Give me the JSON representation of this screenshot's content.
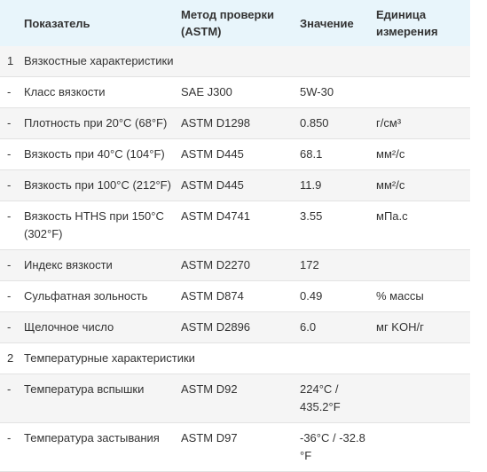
{
  "table": {
    "headers": {
      "num": "",
      "parameter": "Показатель",
      "method": "Метод проверки (ASTM)",
      "value": "Значение",
      "unit": "Единица измерения"
    },
    "rows": [
      {
        "num": "1",
        "parameter": "Вязкостные характеристики",
        "method": "",
        "value": "",
        "unit": "",
        "section": true
      },
      {
        "num": "-",
        "parameter": "Класс вязкости",
        "method": "SAE J300",
        "value": "5W-30",
        "unit": ""
      },
      {
        "num": "-",
        "parameter": "Плотность при 20°C (68°F)",
        "method": "ASTM D1298",
        "value": "0.850",
        "unit": "г/см³"
      },
      {
        "num": "-",
        "parameter": "Вязкость при 40°C (104°F)",
        "method": "ASTM D445",
        "value": "68.1",
        "unit": "мм²/с"
      },
      {
        "num": "-",
        "parameter": "Вязкость при 100°C (212°F)",
        "method": "ASTM D445",
        "value": "11.9",
        "unit": "мм²/с"
      },
      {
        "num": "-",
        "parameter": "Вязкость HTHS при 150°C (302°F)",
        "method": "ASTM D4741",
        "value": "3.55",
        "unit": "мПа.с"
      },
      {
        "num": "-",
        "parameter": "Индекс вязкости",
        "method": "ASTM D2270",
        "value": "172",
        "unit": ""
      },
      {
        "num": "-",
        "parameter": "Сульфатная зольность",
        "method": "ASTM D874",
        "value": "0.49",
        "unit": "% массы"
      },
      {
        "num": "-",
        "parameter": "Щелочное число",
        "method": "ASTM D2896",
        "value": "6.0",
        "unit": "мг KOH/г"
      },
      {
        "num": "2",
        "parameter": "Температурные характеристики",
        "method": "",
        "value": "",
        "unit": "",
        "section": true
      },
      {
        "num": "-",
        "parameter": "Температура вспышки",
        "method": "ASTM D92",
        "value": "224°C / 435.2°F",
        "unit": ""
      },
      {
        "num": "-",
        "parameter": "Температура застывания",
        "method": "ASTM D97",
        "value": "-36°C / -32.8 °F",
        "unit": ""
      }
    ]
  }
}
